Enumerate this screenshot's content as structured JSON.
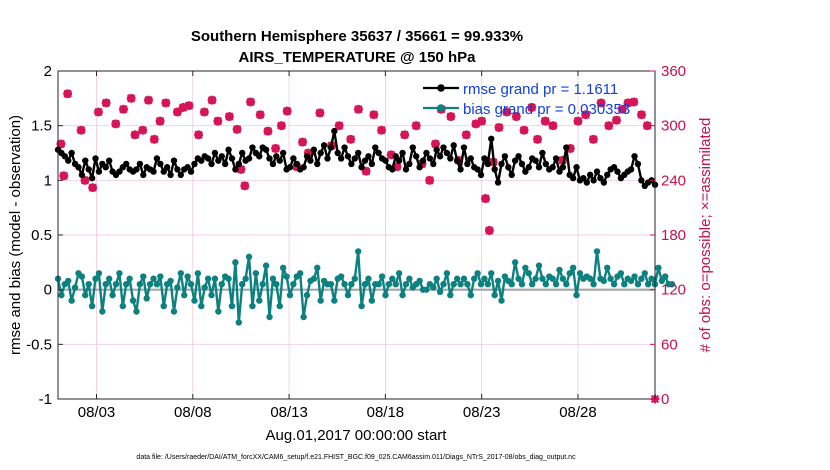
{
  "chart_data": {
    "type": "line",
    "title": "Southern Hemisphere 35637 / 35661 = 99.933%",
    "subtitle": "AIRS_TEMPERATURE @ 150 hPa",
    "xlabel": "Aug.01,2017 00:00:00 start",
    "ylabel": "rmse and bias (model - observation)",
    "ylabel_right": "# of obs: o=possible; ×=assimilated",
    "footer": "data file: /Users/raeder/DAI/ATM_forcXX/CAM6_setup/f.e21.FHIST_BGC.f09_025.CAM6assim.011/Diags_NTrS_2017-08/obs_diag_output.nc",
    "xlim": [
      1.0,
      32.0
    ],
    "ylim": [
      -1,
      2
    ],
    "ylim_right": [
      0,
      360
    ],
    "grid": true,
    "x_ticks": [
      3,
      8,
      13,
      18,
      23,
      28
    ],
    "x_tick_labels": [
      "08/03",
      "08/08",
      "08/13",
      "08/18",
      "08/23",
      "08/28"
    ],
    "y_ticks": [
      -1,
      -0.5,
      0,
      0.5,
      1,
      1.5,
      2
    ],
    "y_tick_labels": [
      "-1",
      "-0.5",
      "0",
      "0.5",
      "1",
      "1.5",
      "2"
    ],
    "y_ticks_right": [
      0,
      60,
      120,
      180,
      240,
      300,
      360
    ],
    "y_tick_labels_right": [
      "0",
      "60",
      "120",
      "180",
      "240",
      "300",
      "360"
    ],
    "colors": {
      "rmse": "#000000",
      "bias": "#0d8080",
      "obs": "#d61558",
      "zero_line": "#a6a6a6",
      "grid": "#f0c0d0"
    },
    "series": [
      {
        "name": "rmse",
        "legend": "rmse grand pr = 1.1611",
        "values": [
          1.28,
          1.25,
          1.22,
          1.18,
          1.25,
          1.15,
          1.12,
          1.05,
          1.18,
          1.1,
          1.02,
          1.2,
          1.08,
          1.15,
          1.12,
          1.18,
          1.08,
          1.05,
          1.08,
          1.12,
          1.15,
          1.1,
          1.08,
          1.1,
          1.15,
          1.05,
          1.12,
          1.1,
          1.08,
          1.2,
          1.15,
          1.08,
          1.12,
          1.05,
          1.18,
          1.1,
          1.05,
          1.1,
          1.12,
          1.08,
          1.15,
          1.2,
          1.18,
          1.22,
          1.2,
          1.15,
          1.25,
          1.18,
          1.22,
          1.15,
          1.28,
          1.2,
          1.1,
          1.15,
          1.25,
          1.18,
          1.2,
          1.3,
          1.25,
          1.22,
          1.3,
          1.28,
          1.2,
          1.15,
          1.22,
          1.18,
          1.25,
          1.1,
          1.12,
          1.2,
          1.15,
          1.1,
          1.12,
          1.22,
          1.18,
          1.28,
          1.15,
          1.25,
          1.32,
          1.2,
          1.3,
          1.45,
          1.25,
          1.2,
          1.3,
          1.22,
          1.15,
          1.2,
          1.25,
          1.12,
          1.18,
          1.22,
          1.15,
          1.3,
          1.25,
          1.2,
          1.18,
          1.12,
          1.1,
          1.22,
          1.18,
          1.25,
          1.1,
          1.15,
          1.3,
          1.22,
          1.12,
          1.18,
          1.25,
          1.2,
          1.15,
          1.28,
          1.22,
          1.3,
          1.25,
          1.2,
          1.32,
          1.18,
          1.1,
          1.3,
          1.15,
          1.2,
          1.12,
          1.1,
          1.05,
          1.2,
          1.15,
          1.38,
          1.1,
          0.98,
          1.15,
          1.22,
          1.12,
          1.05,
          1.18,
          1.22,
          1.15,
          1.08,
          1.12,
          1.2,
          1.18,
          1.12,
          1.25,
          1.15,
          1.1,
          1.12,
          1.2,
          1.08,
          1.12,
          1.3,
          1.05,
          1.02,
          1.12,
          1.0,
          1.02,
          0.98,
          1.05,
          1.0,
          1.08,
          1.02,
          0.98,
          1.05,
          1.1,
          1.12,
          1.08,
          1.02,
          1.05,
          1.08,
          1.1,
          1.22,
          1.15,
          1.0,
          0.95,
          0.98,
          1.0,
          0.96
        ]
      },
      {
        "name": "bias",
        "legend": "bias grand pr = 0.030353",
        "values": [
          0.1,
          -0.05,
          0.05,
          0.08,
          -0.1,
          0.02,
          0.15,
          0.12,
          -0.05,
          0.05,
          -0.15,
          0.1,
          0.15,
          -0.2,
          0.05,
          0.1,
          -0.05,
          0.05,
          0.15,
          -0.15,
          0.05,
          0.1,
          -0.1,
          -0.2,
          0.05,
          0.12,
          -0.08,
          0.05,
          0.1,
          0.05,
          0.12,
          -0.15,
          0.05,
          0.08,
          -0.2,
          0.02,
          0.15,
          -0.05,
          0.12,
          0.05,
          -0.1,
          0.15,
          -0.15,
          0.02,
          0.1,
          -0.05,
          0.1,
          -0.2,
          0.05,
          0.12,
          0.1,
          -0.15,
          0.25,
          -0.3,
          0.05,
          0.1,
          0.3,
          -0.15,
          0.15,
          -0.1,
          0.05,
          0.22,
          -0.25,
          0.1,
          0.05,
          -0.15,
          0.2,
          0.12,
          -0.05,
          0.05,
          0.12,
          0.15,
          -0.25,
          -0.05,
          0.08,
          0.1,
          0.2,
          -0.1,
          0.08,
          0.05,
          0.05,
          -0.1,
          0.1,
          0.12,
          0.05,
          -0.05,
          0.05,
          0.1,
          0.35,
          -0.15,
          0.05,
          0.1,
          -0.1,
          0.05,
          0.05,
          0.12,
          -0.05,
          0.05,
          0.1,
          0.05,
          0.15,
          -0.05,
          0.05,
          0.1,
          0.02,
          0.05,
          0.08,
          0.0,
          0.0,
          0.05,
          0.02,
          0.1,
          -0.02,
          0.05,
          0.15,
          -0.05,
          0.05,
          0.1,
          0.05,
          0.1,
          0.05,
          -0.05,
          0.1,
          0.15,
          0.05,
          0.1,
          0.05,
          0.15,
          -0.05,
          0.08,
          -0.1,
          0.12,
          0.08,
          0.05,
          0.25,
          0.1,
          0.05,
          0.2,
          0.15,
          0.05,
          0.1,
          0.22,
          0.1,
          0.05,
          0.12,
          0.1,
          0.05,
          0.18,
          0.1,
          0.05,
          0.15,
          0.2,
          -0.05,
          0.15,
          0.1,
          0.12,
          0.1,
          0.05,
          0.35,
          0.1,
          0.08,
          0.2,
          0.1,
          0.05,
          0.12,
          0.15,
          0.05,
          0.1,
          0.08,
          0.12,
          0.05,
          0.1,
          0.15,
          0.05,
          0.1,
          0.05,
          0.2,
          0.08,
          0.12,
          0.05,
          0.05
        ]
      },
      {
        "name": "obs_possible",
        "axis": "right",
        "values": [
          [
            1.15,
            280
          ],
          [
            1.3,
            245
          ],
          [
            1.5,
            335
          ],
          [
            2.2,
            295
          ],
          [
            2.4,
            240
          ],
          [
            2.8,
            232
          ],
          [
            3.1,
            315
          ],
          [
            3.5,
            325
          ],
          [
            4.0,
            302
          ],
          [
            4.4,
            318
          ],
          [
            4.8,
            330
          ],
          [
            5.0,
            290
          ],
          [
            5.4,
            295
          ],
          [
            5.7,
            328
          ],
          [
            6.0,
            285
          ],
          [
            6.3,
            305
          ],
          [
            6.6,
            325
          ],
          [
            7.2,
            315
          ],
          [
            7.5,
            320
          ],
          [
            7.8,
            322
          ],
          [
            8.3,
            290
          ],
          [
            8.6,
            315
          ],
          [
            9.0,
            328
          ],
          [
            9.3,
            305
          ],
          [
            9.9,
            310
          ],
          [
            10.3,
            296
          ],
          [
            10.5,
            252
          ],
          [
            10.7,
            234
          ],
          [
            11.0,
            326
          ],
          [
            11.5,
            312
          ],
          [
            11.9,
            294
          ],
          [
            12.3,
            275
          ],
          [
            12.6,
            300
          ],
          [
            12.9,
            316
          ],
          [
            13.4,
            255
          ],
          [
            13.7,
            282
          ],
          [
            14.0,
            270
          ],
          [
            14.6,
            314
          ],
          [
            15.2,
            278
          ],
          [
            15.6,
            300
          ],
          [
            16.2,
            285
          ],
          [
            16.6,
            318
          ],
          [
            17.0,
            250
          ],
          [
            17.4,
            312
          ],
          [
            17.8,
            295
          ],
          [
            18.3,
            268
          ],
          [
            18.6,
            255
          ],
          [
            19.0,
            290
          ],
          [
            19.6,
            300
          ],
          [
            19.9,
            258
          ],
          [
            20.3,
            240
          ],
          [
            20.6,
            280
          ],
          [
            20.9,
            318
          ],
          [
            21.4,
            310
          ],
          [
            21.8,
            262
          ],
          [
            22.2,
            290
          ],
          [
            22.7,
            302
          ],
          [
            23.0,
            305
          ],
          [
            23.2,
            220
          ],
          [
            23.4,
            185
          ],
          [
            23.6,
            260
          ],
          [
            23.9,
            298
          ],
          [
            24.3,
            315
          ],
          [
            24.8,
            310
          ],
          [
            25.2,
            295
          ],
          [
            25.6,
            320
          ],
          [
            25.9,
            285
          ],
          [
            26.3,
            305
          ],
          [
            26.7,
            300
          ],
          [
            27.2,
            262
          ],
          [
            27.6,
            275
          ],
          [
            28.0,
            305
          ],
          [
            28.4,
            312
          ],
          [
            28.8,
            285
          ],
          [
            29.2,
            325
          ],
          [
            29.6,
            300
          ],
          [
            30.0,
            306
          ],
          [
            30.3,
            318
          ],
          [
            30.6,
            325
          ],
          [
            30.9,
            326
          ],
          [
            31.3,
            312
          ],
          [
            31.6,
            300
          ]
        ]
      },
      {
        "name": "obs_assimilated",
        "axis": "right",
        "values": [
          [
            1.15,
            280
          ],
          [
            1.3,
            245
          ],
          [
            1.5,
            335
          ],
          [
            2.2,
            295
          ],
          [
            2.4,
            240
          ],
          [
            2.8,
            232
          ],
          [
            3.1,
            315
          ],
          [
            3.5,
            325
          ],
          [
            4.0,
            302
          ],
          [
            4.4,
            318
          ],
          [
            4.8,
            330
          ],
          [
            5.0,
            290
          ],
          [
            5.4,
            295
          ],
          [
            5.7,
            328
          ],
          [
            6.0,
            285
          ],
          [
            6.3,
            305
          ],
          [
            6.6,
            325
          ],
          [
            7.2,
            315
          ],
          [
            7.5,
            320
          ],
          [
            7.8,
            322
          ],
          [
            8.3,
            290
          ],
          [
            8.6,
            315
          ],
          [
            9.0,
            328
          ],
          [
            9.3,
            305
          ],
          [
            9.9,
            310
          ],
          [
            10.3,
            296
          ],
          [
            10.5,
            252
          ],
          [
            10.7,
            234
          ],
          [
            11.0,
            326
          ],
          [
            11.5,
            312
          ],
          [
            11.9,
            294
          ],
          [
            12.3,
            275
          ],
          [
            12.6,
            300
          ],
          [
            12.9,
            316
          ],
          [
            13.4,
            255
          ],
          [
            13.7,
            282
          ],
          [
            14.0,
            270
          ],
          [
            14.6,
            314
          ],
          [
            15.2,
            278
          ],
          [
            15.6,
            300
          ],
          [
            16.2,
            285
          ],
          [
            16.6,
            318
          ],
          [
            17.0,
            250
          ],
          [
            17.4,
            312
          ],
          [
            17.8,
            295
          ],
          [
            18.3,
            268
          ],
          [
            18.6,
            255
          ],
          [
            19.0,
            290
          ],
          [
            19.6,
            300
          ],
          [
            19.9,
            258
          ],
          [
            20.3,
            240
          ],
          [
            20.6,
            280
          ],
          [
            20.9,
            318
          ],
          [
            21.4,
            310
          ],
          [
            21.8,
            262
          ],
          [
            22.2,
            290
          ],
          [
            22.7,
            302
          ],
          [
            23.0,
            305
          ],
          [
            23.2,
            220
          ],
          [
            23.4,
            185
          ],
          [
            23.6,
            260
          ],
          [
            23.9,
            298
          ],
          [
            24.3,
            315
          ],
          [
            24.8,
            310
          ],
          [
            25.2,
            295
          ],
          [
            25.6,
            320
          ],
          [
            25.9,
            285
          ],
          [
            26.3,
            305
          ],
          [
            26.7,
            300
          ],
          [
            27.2,
            262
          ],
          [
            27.6,
            275
          ],
          [
            28.0,
            305
          ],
          [
            28.4,
            312
          ],
          [
            28.8,
            285
          ],
          [
            29.2,
            325
          ],
          [
            29.6,
            300
          ],
          [
            30.0,
            306
          ],
          [
            30.3,
            318
          ],
          [
            30.6,
            325
          ],
          [
            30.9,
            326
          ],
          [
            31.3,
            312
          ],
          [
            31.6,
            300
          ],
          [
            32.0,
            0
          ]
        ]
      }
    ]
  }
}
